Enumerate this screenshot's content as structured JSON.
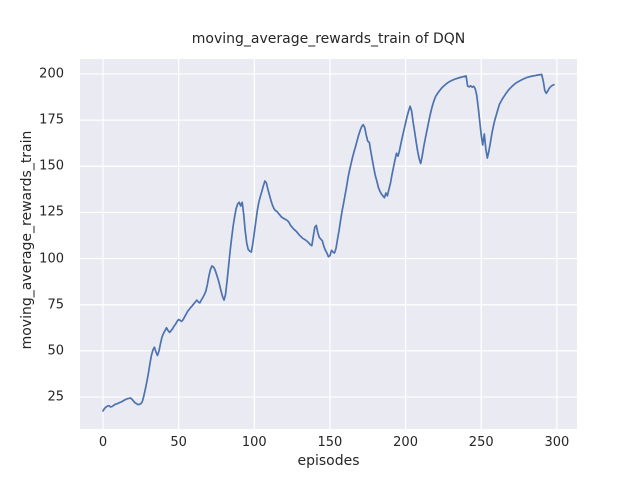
{
  "chart_data": {
    "type": "line",
    "title": "moving_average_rewards_train of DQN",
    "xlabel": "episodes",
    "ylabel": "moving_average_rewards_train",
    "xticks": [
      0,
      50,
      100,
      150,
      200,
      250,
      300
    ],
    "yticks": [
      25,
      50,
      75,
      100,
      125,
      150,
      175,
      200
    ],
    "xlim": [
      -15.2,
      313.3
    ],
    "ylim": [
      7.7,
      208.1
    ],
    "grid": true,
    "legend": "none",
    "style": {
      "line_color": "#4C72B0",
      "plot_bg": "#EAEAF2",
      "grid_color": "#FFFFFF",
      "figure_bg": "#FFFFFF",
      "text_color": "#262626"
    },
    "series": [
      {
        "name": "moving_average_rewards_train",
        "points": [
          [
            0,
            17.5
          ],
          [
            1,
            18.8
          ],
          [
            2,
            19.6
          ],
          [
            3,
            20.1
          ],
          [
            4,
            20.3
          ],
          [
            5,
            19.6
          ],
          [
            6,
            19.9
          ],
          [
            7,
            20.5
          ],
          [
            8,
            21.1
          ],
          [
            9,
            21.3
          ],
          [
            10,
            21.6
          ],
          [
            11,
            22.0
          ],
          [
            12,
            22.3
          ],
          [
            13,
            22.8
          ],
          [
            14,
            23.3
          ],
          [
            15,
            23.7
          ],
          [
            16,
            24.1
          ],
          [
            17,
            24.3
          ],
          [
            18,
            24.5
          ],
          [
            19,
            24.0
          ],
          [
            20,
            23.0
          ],
          [
            21,
            22.0
          ],
          [
            22,
            21.5
          ],
          [
            23,
            20.9
          ],
          [
            24,
            21.0
          ],
          [
            25,
            21.4
          ],
          [
            26,
            22.5
          ],
          [
            27,
            25.5
          ],
          [
            28,
            29.5
          ],
          [
            29,
            33.5
          ],
          [
            30,
            38.0
          ],
          [
            31,
            43.0
          ],
          [
            32,
            47.5
          ],
          [
            33,
            50.5
          ],
          [
            34,
            52.0
          ],
          [
            35,
            49.5
          ],
          [
            36,
            47.5
          ],
          [
            37,
            50.0
          ],
          [
            38,
            54.0
          ],
          [
            39,
            57.5
          ],
          [
            40,
            59.5
          ],
          [
            41,
            61.0
          ],
          [
            42,
            62.5
          ],
          [
            43,
            61.0
          ],
          [
            44,
            60.0
          ],
          [
            45,
            61.0
          ],
          [
            46,
            62.0
          ],
          [
            47,
            63.5
          ],
          [
            48,
            64.5
          ],
          [
            49,
            66.0
          ],
          [
            50,
            67.0
          ],
          [
            51,
            66.5
          ],
          [
            52,
            66.0
          ],
          [
            53,
            67.0
          ],
          [
            54,
            68.5
          ],
          [
            55,
            70.0
          ],
          [
            56,
            71.5
          ],
          [
            57,
            72.5
          ],
          [
            58,
            73.5
          ],
          [
            59,
            74.5
          ],
          [
            60,
            75.5
          ],
          [
            61,
            76.5
          ],
          [
            62,
            77.5
          ],
          [
            63,
            76.5
          ],
          [
            64,
            76.0
          ],
          [
            65,
            77.5
          ],
          [
            66,
            79.0
          ],
          [
            67,
            80.5
          ],
          [
            68,
            82.5
          ],
          [
            69,
            86.0
          ],
          [
            70,
            90.5
          ],
          [
            71,
            94.0
          ],
          [
            72,
            96.0
          ],
          [
            73,
            95.5
          ],
          [
            74,
            94.0
          ],
          [
            75,
            91.5
          ],
          [
            76,
            89.0
          ],
          [
            77,
            86.0
          ],
          [
            78,
            82.5
          ],
          [
            79,
            79.5
          ],
          [
            80,
            77.5
          ],
          [
            81,
            80.5
          ],
          [
            82,
            88.0
          ],
          [
            83,
            96.0
          ],
          [
            84,
            104.0
          ],
          [
            85,
            111.0
          ],
          [
            86,
            117.5
          ],
          [
            87,
            122.5
          ],
          [
            88,
            127.0
          ],
          [
            89,
            129.5
          ],
          [
            90,
            130.5
          ],
          [
            91,
            128.5
          ],
          [
            92,
            130.5
          ],
          [
            93,
            124.0
          ],
          [
            94,
            115.0
          ],
          [
            95,
            108.5
          ],
          [
            96,
            105.0
          ],
          [
            97,
            104.0
          ],
          [
            98,
            103.5
          ],
          [
            99,
            108.0
          ],
          [
            100,
            114.0
          ],
          [
            101,
            120.0
          ],
          [
            102,
            126.0
          ],
          [
            103,
            130.5
          ],
          [
            104,
            133.5
          ],
          [
            105,
            136.5
          ],
          [
            106,
            139.5
          ],
          [
            107,
            142.0
          ],
          [
            108,
            141.0
          ],
          [
            109,
            137.5
          ],
          [
            110,
            134.5
          ],
          [
            111,
            131.5
          ],
          [
            112,
            129.0
          ],
          [
            113,
            127.0
          ],
          [
            114,
            126.0
          ],
          [
            115,
            125.5
          ],
          [
            116,
            124.5
          ],
          [
            117,
            123.5
          ],
          [
            118,
            122.5
          ],
          [
            119,
            122.0
          ],
          [
            120,
            121.5
          ],
          [
            121,
            121.0
          ],
          [
            122,
            120.5
          ],
          [
            123,
            119.5
          ],
          [
            124,
            118.0
          ],
          [
            125,
            117.0
          ],
          [
            126,
            116.0
          ],
          [
            127,
            115.3
          ],
          [
            128,
            114.5
          ],
          [
            129,
            113.5
          ],
          [
            130,
            112.5
          ],
          [
            131,
            111.8
          ],
          [
            132,
            111.0
          ],
          [
            133,
            110.5
          ],
          [
            134,
            110.0
          ],
          [
            135,
            109.3
          ],
          [
            136,
            108.5
          ],
          [
            137,
            107.5
          ],
          [
            138,
            107.0
          ],
          [
            139,
            112.0
          ],
          [
            140,
            117.0
          ],
          [
            141,
            118.0
          ],
          [
            142,
            114.0
          ],
          [
            143,
            111.5
          ],
          [
            144,
            110.5
          ],
          [
            145,
            109.5
          ],
          [
            146,
            106.5
          ],
          [
            147,
            104.5
          ],
          [
            148,
            103.0
          ],
          [
            149,
            101.0
          ],
          [
            150,
            101.5
          ],
          [
            151,
            104.5
          ],
          [
            152,
            103.5
          ],
          [
            153,
            103.0
          ],
          [
            154,
            105.5
          ],
          [
            155,
            110.5
          ],
          [
            156,
            115.0
          ],
          [
            157,
            120.5
          ],
          [
            158,
            125.5
          ],
          [
            159,
            130.0
          ],
          [
            160,
            134.5
          ],
          [
            161,
            139.0
          ],
          [
            162,
            144.0
          ],
          [
            163,
            148.0
          ],
          [
            164,
            151.5
          ],
          [
            165,
            155.0
          ],
          [
            166,
            158.0
          ],
          [
            167,
            161.0
          ],
          [
            168,
            164.0
          ],
          [
            169,
            167.0
          ],
          [
            170,
            169.5
          ],
          [
            171,
            171.5
          ],
          [
            172,
            172.5
          ],
          [
            173,
            171.0
          ],
          [
            174,
            167.0
          ],
          [
            175,
            163.5
          ],
          [
            176,
            163.0
          ],
          [
            177,
            158.0
          ],
          [
            178,
            153.5
          ],
          [
            179,
            149.0
          ],
          [
            180,
            145.0
          ],
          [
            181,
            142.0
          ],
          [
            182,
            138.5
          ],
          [
            183,
            136.5
          ],
          [
            184,
            135.0
          ],
          [
            185,
            134.0
          ],
          [
            186,
            133.0
          ],
          [
            187,
            135.5
          ],
          [
            188,
            134.0
          ],
          [
            189,
            137.5
          ],
          [
            190,
            141.0
          ],
          [
            191,
            145.5
          ],
          [
            192,
            149.5
          ],
          [
            193,
            153.5
          ],
          [
            194,
            157.0
          ],
          [
            195,
            155.5
          ],
          [
            196,
            158.5
          ],
          [
            197,
            162.5
          ],
          [
            198,
            166.5
          ],
          [
            199,
            170.0
          ],
          [
            200,
            173.5
          ],
          [
            201,
            177.0
          ],
          [
            202,
            180.0
          ],
          [
            203,
            182.5
          ],
          [
            204,
            180.0
          ],
          [
            205,
            174.0
          ],
          [
            206,
            168.5
          ],
          [
            207,
            163.0
          ],
          [
            208,
            158.0
          ],
          [
            209,
            154.0
          ],
          [
            210,
            151.5
          ],
          [
            211,
            155.5
          ],
          [
            212,
            160.5
          ],
          [
            213,
            165.0
          ],
          [
            214,
            169.0
          ],
          [
            215,
            173.0
          ],
          [
            216,
            177.0
          ],
          [
            217,
            180.5
          ],
          [
            218,
            183.5
          ],
          [
            219,
            186.0
          ],
          [
            220,
            188.0
          ],
          [
            222,
            190.5
          ],
          [
            224,
            192.5
          ],
          [
            226,
            194.0
          ],
          [
            228,
            195.3
          ],
          [
            230,
            196.3
          ],
          [
            232,
            197.0
          ],
          [
            234,
            197.6
          ],
          [
            236,
            198.1
          ],
          [
            238,
            198.5
          ],
          [
            240,
            198.9
          ],
          [
            241,
            193.5
          ],
          [
            242,
            193.0
          ],
          [
            243,
            193.6
          ],
          [
            244,
            192.9
          ],
          [
            245,
            193.3
          ],
          [
            246,
            192.0
          ],
          [
            247,
            188.5
          ],
          [
            248,
            182.0
          ],
          [
            249,
            174.5
          ],
          [
            250,
            167.0
          ],
          [
            251,
            161.5
          ],
          [
            252,
            167.5
          ],
          [
            253,
            159.5
          ],
          [
            254,
            154.5
          ],
          [
            255,
            158.0
          ],
          [
            256,
            162.5
          ],
          [
            257,
            167.5
          ],
          [
            258,
            171.5
          ],
          [
            259,
            175.0
          ],
          [
            260,
            178.0
          ],
          [
            262,
            183.5
          ],
          [
            264,
            186.5
          ],
          [
            266,
            189.0
          ],
          [
            268,
            191.3
          ],
          [
            270,
            193.0
          ],
          [
            272,
            194.5
          ],
          [
            274,
            195.6
          ],
          [
            276,
            196.5
          ],
          [
            278,
            197.3
          ],
          [
            280,
            198.0
          ],
          [
            282,
            198.5
          ],
          [
            284,
            198.9
          ],
          [
            286,
            199.2
          ],
          [
            288,
            199.5
          ],
          [
            290,
            199.7
          ],
          [
            291,
            196.0
          ],
          [
            292,
            191.0
          ],
          [
            293,
            189.5
          ],
          [
            294,
            190.8
          ],
          [
            295,
            192.3
          ],
          [
            296,
            193.2
          ],
          [
            297,
            193.8
          ],
          [
            298,
            194.2
          ]
        ]
      }
    ]
  }
}
